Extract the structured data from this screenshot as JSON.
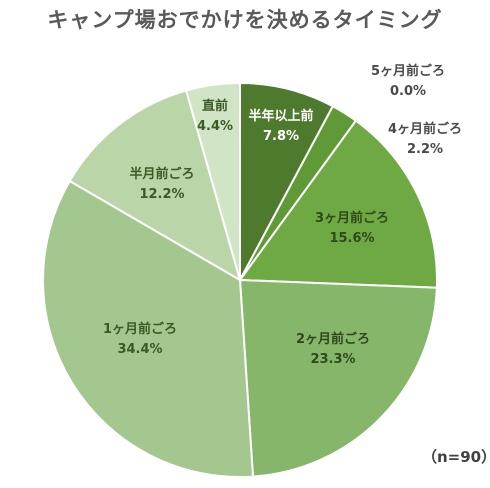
{
  "chart_data": {
    "type": "pie",
    "title": "キャンプ場おでかけを決めるタイミング",
    "note": "（n=90）",
    "slices": [
      {
        "label": "半年以上前",
        "value": 7.8,
        "display": "7.8%",
        "color": "#4e7a2e",
        "text_color": "#ffffff"
      },
      {
        "label": "5ヶ月前ごろ",
        "value": 0.0,
        "display": "0.0%",
        "color": "#578a33",
        "text_color": "#4a4a4a"
      },
      {
        "label": "4ヶ月前ごろ",
        "value": 2.2,
        "display": "2.2%",
        "color": "#5f9a36",
        "text_color": "#4a4a4a"
      },
      {
        "label": "3ヶ月前ごろ",
        "value": 15.6,
        "display": "15.6%",
        "color": "#6fa944",
        "text_color": "#2e4a1a"
      },
      {
        "label": "2ヶ月前ごろ",
        "value": 23.3,
        "display": "23.3%",
        "color": "#85b66a",
        "text_color": "#2e4a1a"
      },
      {
        "label": "1ヶ月前ごろ",
        "value": 34.4,
        "display": "34.4%",
        "color": "#a3c78e",
        "text_color": "#3a5a26"
      },
      {
        "label": "半月前ごろ",
        "value": 12.2,
        "display": "12.2%",
        "color": "#bad6a8",
        "text_color": "#3a5a26"
      },
      {
        "label": "直前",
        "value": 4.4,
        "display": "4.4%",
        "color": "#d2e4c6",
        "text_color": "#3a5a26"
      }
    ]
  }
}
